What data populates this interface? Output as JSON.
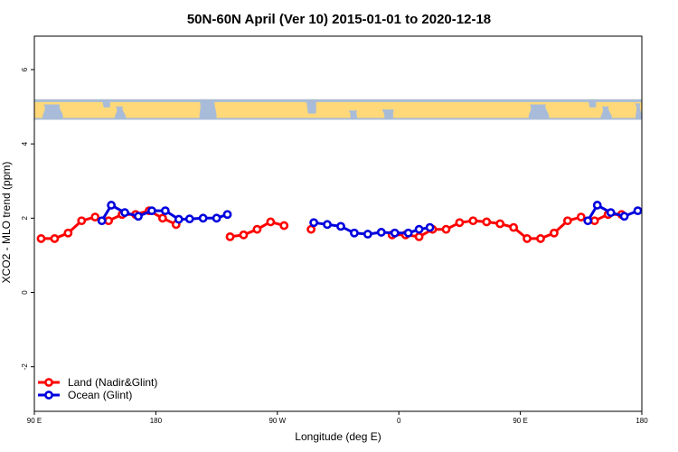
{
  "chart_data": {
    "type": "line",
    "title": "50N-60N April (Ver 10)   2015-01-01 to 2020-12-18",
    "xlabel": "Longitude (deg E)",
    "ylabel": "XCO2 - MLO trend (ppm)",
    "xlim": [
      90,
      540
    ],
    "ylim": [
      -3.2,
      6.9
    ],
    "x_ticks": [
      {
        "value": 90,
        "label": "90 E"
      },
      {
        "value": 180,
        "label": "180"
      },
      {
        "value": 270,
        "label": "90 W"
      },
      {
        "value": 360,
        "label": "0"
      },
      {
        "value": 450,
        "label": "90 E"
      },
      {
        "value": 540,
        "label": "180"
      }
    ],
    "y_ticks": [
      {
        "value": -2,
        "label": "-2"
      },
      {
        "value": 0,
        "label": "0"
      },
      {
        "value": 2,
        "label": "2"
      },
      {
        "value": 4,
        "label": "4"
      },
      {
        "value": 6,
        "label": "6"
      }
    ],
    "map_band": {
      "ymin": 4.65,
      "ymax": 5.2,
      "land_color": "#ffd87a",
      "ocean_color": "#a8bcd9"
    },
    "legend_position": "bottom-left",
    "series": [
      {
        "name": "Land (Nadir&Glint)",
        "color": "#ff0000",
        "segments": [
          [
            [
              95,
              1.45
            ],
            [
              105,
              1.45
            ],
            [
              115,
              1.6
            ],
            [
              125,
              1.93
            ],
            [
              135,
              2.03
            ],
            [
              145,
              1.93
            ],
            [
              155,
              2.1
            ],
            [
              165,
              2.1
            ],
            [
              175,
              2.2
            ],
            [
              185,
              2.0
            ],
            [
              195,
              1.83
            ]
          ],
          [
            [
              235,
              1.5
            ],
            [
              245,
              1.55
            ],
            [
              255,
              1.7
            ],
            [
              265,
              1.9
            ],
            [
              275,
              1.8
            ]
          ],
          [
            [
              295,
              1.7
            ]
          ],
          [
            [
              355,
              1.55
            ],
            [
              365,
              1.55
            ],
            [
              375,
              1.5
            ],
            [
              385,
              1.7
            ],
            [
              395,
              1.7
            ],
            [
              405,
              1.88
            ],
            [
              415,
              1.93
            ],
            [
              425,
              1.9
            ],
            [
              435,
              1.85
            ],
            [
              445,
              1.75
            ],
            [
              455,
              1.45
            ],
            [
              465,
              1.45
            ],
            [
              475,
              1.6
            ],
            [
              485,
              1.93
            ],
            [
              495,
              2.03
            ],
            [
              505,
              1.93
            ],
            [
              515,
              2.1
            ],
            [
              525,
              2.1
            ]
          ]
        ]
      },
      {
        "name": "Ocean (Glint)",
        "color": "#0000dd",
        "segments": [
          [
            [
              140,
              1.93
            ],
            [
              147,
              2.35
            ],
            [
              157,
              2.15
            ],
            [
              167,
              2.05
            ],
            [
              177,
              2.2
            ],
            [
              187,
              2.2
            ],
            [
              197,
              1.97
            ],
            [
              205,
              1.98
            ],
            [
              215,
              2.0
            ],
            [
              225,
              2.0
            ],
            [
              233,
              2.1
            ]
          ],
          [
            [
              297,
              1.88
            ],
            [
              307,
              1.83
            ],
            [
              317,
              1.78
            ],
            [
              327,
              1.6
            ],
            [
              337,
              1.57
            ],
            [
              347,
              1.62
            ],
            [
              357,
              1.6
            ],
            [
              367,
              1.6
            ],
            [
              375,
              1.7
            ],
            [
              383,
              1.75
            ]
          ],
          [
            [
              500,
              1.93
            ],
            [
              507,
              2.35
            ],
            [
              517,
              2.15
            ],
            [
              527,
              2.05
            ],
            [
              537,
              2.2
            ]
          ]
        ]
      }
    ]
  }
}
